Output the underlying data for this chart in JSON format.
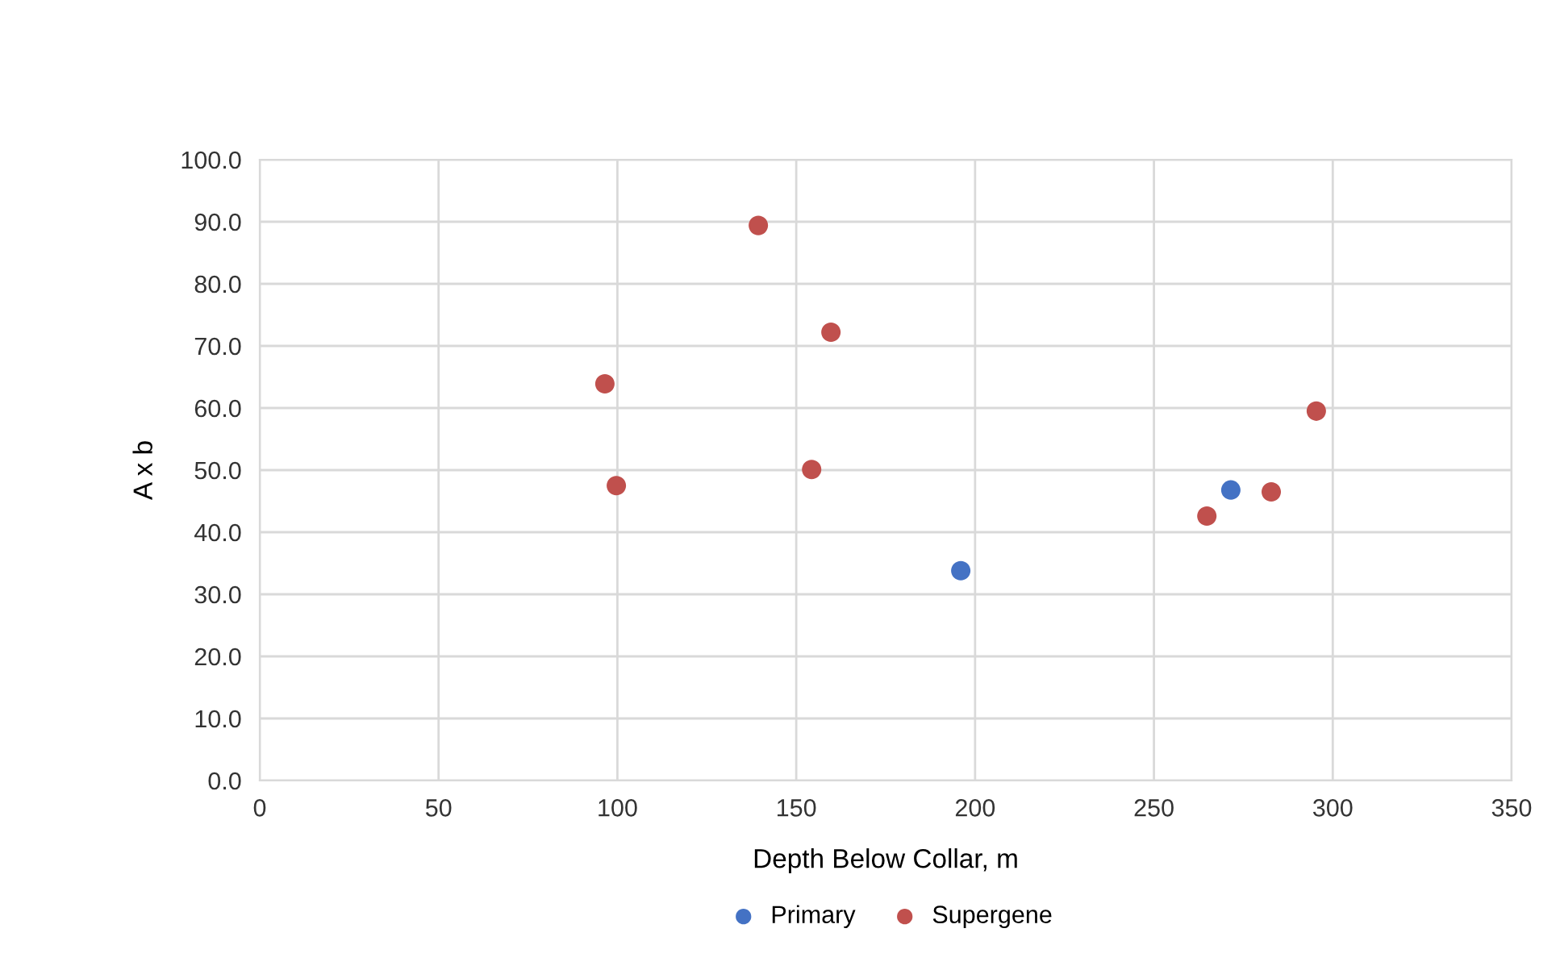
{
  "chart_data": {
    "type": "scatter",
    "xlabel": "Depth Below Collar, m",
    "ylabel": "A x b",
    "xlim": [
      0,
      350
    ],
    "xticks": [
      0,
      50,
      100,
      150,
      200,
      250,
      300,
      350
    ],
    "ylim": [
      0,
      100
    ],
    "yticks": [
      {
        "value": 0,
        "label": "0.0"
      },
      {
        "value": 10,
        "label": "10.0"
      },
      {
        "value": 20,
        "label": "20.0"
      },
      {
        "value": 30,
        "label": "30.0"
      },
      {
        "value": 40,
        "label": "40.0"
      },
      {
        "value": 50,
        "label": "50.0"
      },
      {
        "value": 60,
        "label": "60.0"
      },
      {
        "value": 70,
        "label": "70.0"
      },
      {
        "value": 80,
        "label": "80.0"
      },
      {
        "value": 90,
        "label": "90.0"
      },
      {
        "value": 100,
        "label": "100.0"
      }
    ],
    "grid": true,
    "legend": "bottom",
    "marker": "circle",
    "series": [
      {
        "name": "Primary",
        "color": "#4472c4",
        "x": [
          196,
          271.5
        ],
        "values": [
          33.8,
          46.8
        ]
      },
      {
        "name": "Supergene",
        "color": "#c0504d",
        "x": [
          96.5,
          99.7,
          139.4,
          159.7,
          154.3,
          264.8,
          282.8,
          295.4
        ],
        "values": [
          63.9,
          47.5,
          89.4,
          72.2,
          50.1,
          42.6,
          46.5,
          59.5
        ]
      }
    ]
  }
}
